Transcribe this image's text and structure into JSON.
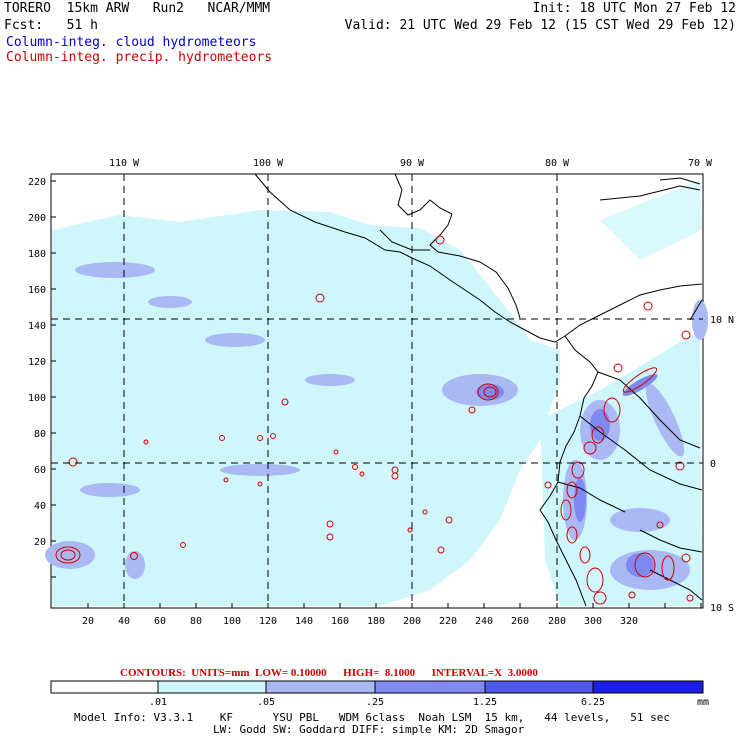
{
  "header": {
    "model_name": "TORERO  15km ARW   Run2   NCAR/MMM",
    "init": "Init: 18 UTC Mon 27 Feb 12",
    "forecast": "Fcst:   51 h",
    "valid": "Valid: 21 UTC Wed 29 Feb 12 (15 CST Wed 29 Feb 12)",
    "cloud_field": "Column-integ. cloud hydrometeors",
    "precip_field": "Column-integ. precip. hydrometeors"
  },
  "colors": {
    "cloud_field": "#0000cc",
    "precip_field": "#d00000",
    "contour": "#d00000",
    "shade1": "#cff7fb",
    "shade2": "#aab8f4",
    "shade3": "#7f89f0",
    "shade4": "#4f58ec",
    "shade5": "#1a1ee6"
  },
  "map": {
    "lon_labels": [
      "110 W",
      "100 W",
      "90 W",
      "80 W",
      "70 W"
    ],
    "lat_labels": [
      "10 N",
      "0",
      "10 S"
    ],
    "x_ticks": [
      "20",
      "40",
      "60",
      "80",
      "100",
      "120",
      "140",
      "160",
      "180",
      "200",
      "220",
      "240",
      "260",
      "280",
      "300",
      "320"
    ],
    "y_ticks": [
      "220",
      "200",
      "180",
      "160",
      "140",
      "120",
      "100",
      "80",
      "60",
      "40",
      "20"
    ]
  },
  "contour_info": {
    "text": "CONTOURS:  UNITS=mm  LOW= 0.10000      HIGH=  8.1000      INTERVAL=X  3.0000"
  },
  "colorbar": {
    "labels": [
      ".01",
      ".05",
      ".25",
      "1.25",
      "6.25"
    ],
    "units": "mm"
  },
  "model_info": {
    "line1": "Model Info: V3.3.1    KF      YSU PBL   WDM 6class  Noah LSM  15 km,   44 levels,   51 sec",
    "line2": "LW: Godd SW: Goddard DIFF: simple KM: 2D Smagor"
  }
}
